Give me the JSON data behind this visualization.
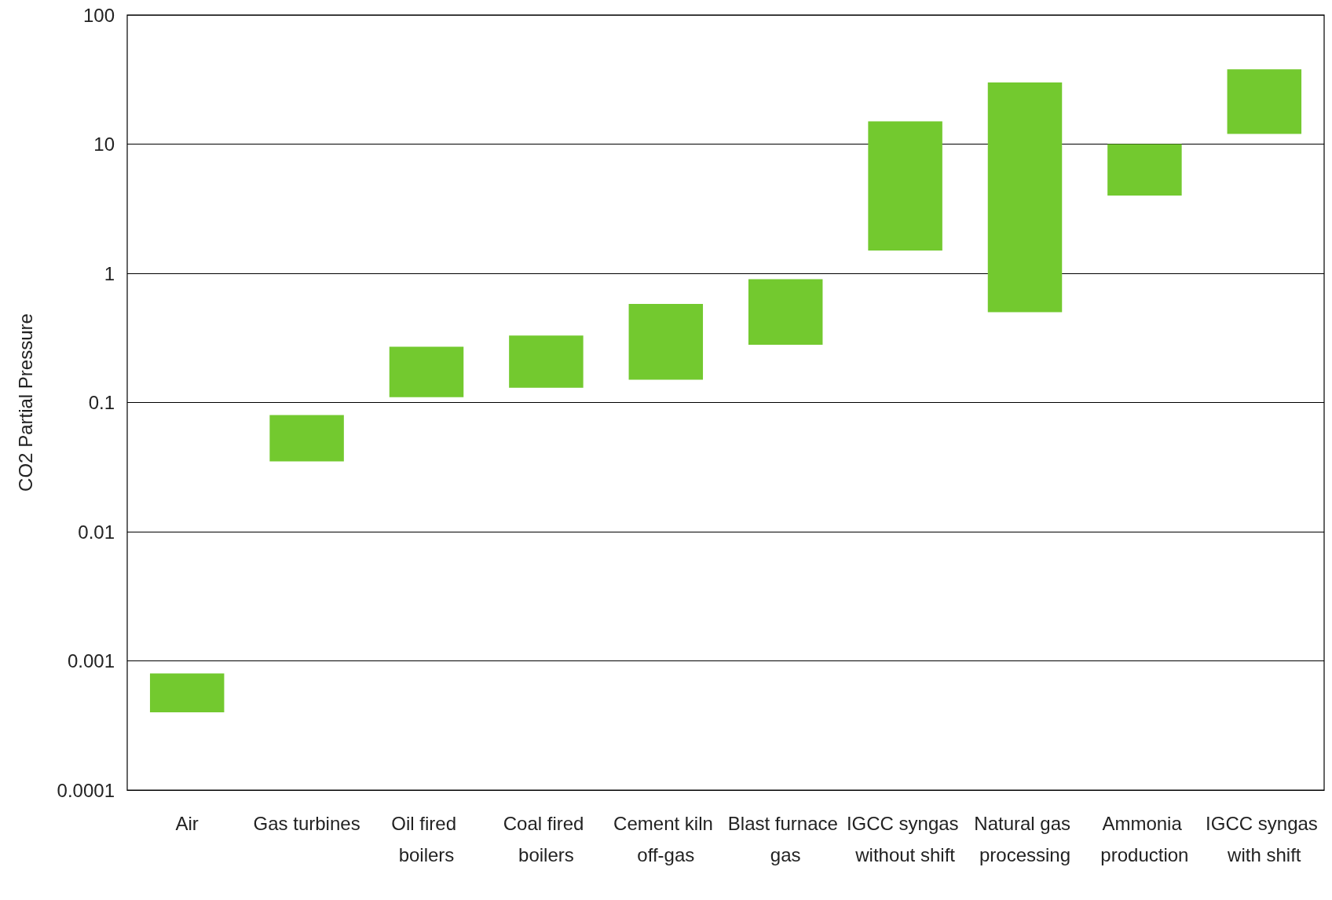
{
  "chart_data": {
    "type": "bar",
    "ylabel": "CO2 Partial Pressure",
    "categories": [
      "Air",
      "Gas turbines",
      "Oil fired boilers",
      "Coal fired boilers",
      "Cement kiln off-gas",
      "Blast furnace gas",
      "IGCC syngas without shift",
      "Natural gas processing",
      "Ammonia production",
      "IGCC syngas with shift"
    ],
    "base": [
      0.0004,
      0.035,
      0.11,
      0.13,
      0.15,
      0.28,
      1.5,
      0.5,
      4,
      12
    ],
    "values": [
      0.0004,
      0.045,
      0.16,
      0.2,
      0.43,
      0.62,
      13.5,
      29.5,
      6,
      26
    ],
    "color": "#73c92f",
    "log": "y",
    "ylim": [
      0.0001,
      100
    ],
    "yticks": [
      0.0001,
      0.001,
      0.01,
      0.1,
      1,
      10,
      100
    ],
    "grid": "y"
  }
}
